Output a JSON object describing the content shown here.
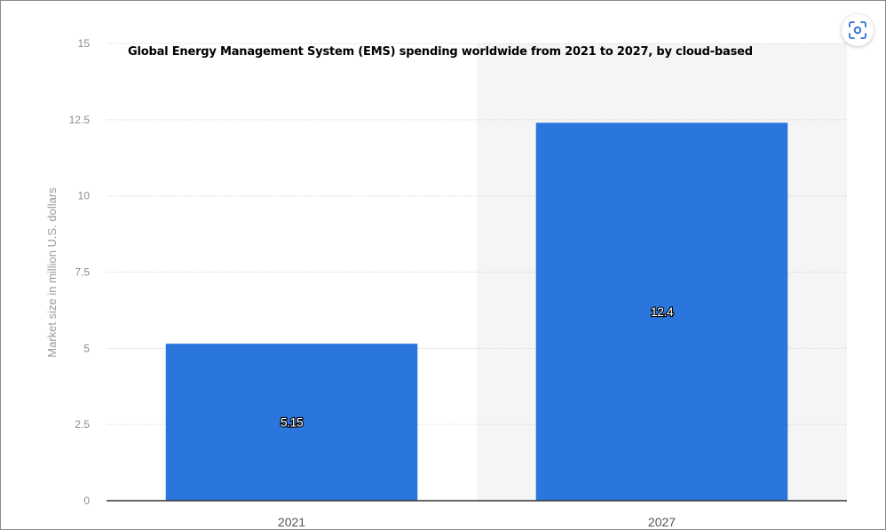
{
  "chart_data": {
    "type": "bar",
    "title": "Global Energy Management System (EMS) spending worldwide from 2021 to 2027, by cloud-based",
    "ylabel": "Market size in million U.S. dollars",
    "xlabel": "",
    "categories": [
      "2021",
      "2027"
    ],
    "values": [
      5.15,
      12.4
    ],
    "data_labels": [
      "5.15",
      "12.4"
    ],
    "ylim": [
      0,
      15
    ],
    "yticks": [
      0,
      2.5,
      5,
      7.5,
      10,
      12.5,
      15
    ],
    "ytick_labels": [
      "0",
      "2.5",
      "5",
      "7.5",
      "10",
      "12.5",
      "15"
    ],
    "grid": true,
    "legend": "none",
    "bar_color": "#2b76dc"
  },
  "toolbar": {
    "scan_icon": "scan-icon"
  }
}
